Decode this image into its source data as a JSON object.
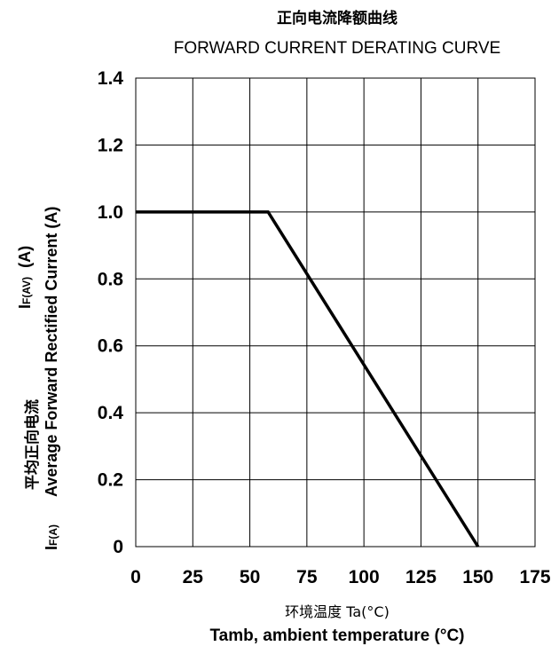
{
  "chart_data": {
    "type": "line",
    "title": "正向电流降额曲线",
    "subtitle": "FORWARD CURRENT DERATING CURVE",
    "xlabel_cn": "环境温度 Ta(°C)",
    "xlabel": "Tamb, ambient temperature (°C)",
    "ylabel_cn": "平均正向电流",
    "ylabel": "Average Forward Rectified Current (A)",
    "ylabel_symbol_main": "I",
    "ylabel_symbol_sub": "F(A)",
    "ylabel_symbol2_main": "I",
    "ylabel_symbol2_sub": "F(AV)",
    "ylabel_symbol2_unit": "(A)",
    "xlim": [
      0,
      175
    ],
    "ylim": [
      0,
      1.4
    ],
    "x_ticks": [
      0,
      25,
      50,
      75,
      100,
      125,
      150,
      175
    ],
    "y_ticks": [
      0,
      0.2,
      0.4,
      0.6,
      0.8,
      1.0,
      1.2,
      1.4
    ],
    "y_tick_labels": [
      "0",
      "0.2",
      "0.4",
      "0.6",
      "0.8",
      "1.0",
      "1.2",
      "1.4"
    ],
    "x_tick_labels": [
      "0",
      "25",
      "50",
      "75",
      "100",
      "125",
      "150",
      "175"
    ],
    "grid": true,
    "series": [
      {
        "x": [
          0,
          58,
          150
        ],
        "y": [
          1.0,
          1.0,
          0
        ]
      }
    ],
    "line_color": "#000000"
  }
}
